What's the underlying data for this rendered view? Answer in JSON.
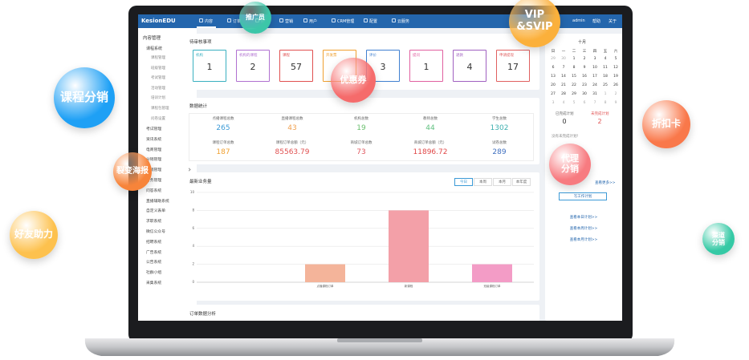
{
  "app": {
    "logo": "KesionEDU",
    "nav": [
      "内容",
      "订单",
      "财务",
      "营销",
      "用户",
      "CRM管理",
      "配置",
      "云服务"
    ],
    "user": [
      "admin",
      "帮助",
      "关于"
    ],
    "sidebar": {
      "title": "内容管理",
      "group": "课程系统",
      "sub": [
        "课程管理",
        "班级管理",
        "考试管理",
        "活动管理",
        "培训计划",
        "课程包管理",
        "问卷设置"
      ],
      "menu": [
        "考试管理",
        "资讯系统",
        "电商管理",
        "分销管理",
        "营销管理",
        "财务管理",
        "问答系统",
        "直播辅助系统",
        "自定义表单",
        "求职系统",
        "微信公众号",
        "招聘系统",
        "广告系统",
        "公告系统",
        "社群小组",
        "采集系统"
      ]
    },
    "pending": {
      "title": "待审核事项",
      "cards": [
        {
          "label": "机构",
          "value": 1,
          "color": "#3ab0c0"
        },
        {
          "label": "机构的课程",
          "value": 2,
          "color": "#b070d0"
        },
        {
          "label": "课程",
          "value": 57,
          "color": "#e05050"
        },
        {
          "label": "开发票",
          "color": "#f0a030"
        },
        {
          "label": "评价",
          "value": 3,
          "color": "#4080d0"
        },
        {
          "label": "提问",
          "value": 1,
          "color": "#e060a0"
        },
        {
          "label": "退款",
          "value": 4,
          "color": "#a060c0"
        },
        {
          "label": "申请提现",
          "value": 17,
          "color": "#e06060"
        }
      ]
    },
    "stats": {
      "title": "数据统计",
      "items": [
        {
          "label": "点播课程总数",
          "value": "265",
          "color": "#3c9ad6"
        },
        {
          "label": "直播课程总数",
          "value": "43",
          "color": "#f0a050"
        },
        {
          "label": "机构总数",
          "value": "19",
          "color": "#6cc070"
        },
        {
          "label": "教师总数",
          "value": "44",
          "color": "#60c080"
        },
        {
          "label": "学生总数",
          "value": "1302",
          "color": "#3fb0b0"
        },
        {
          "label": "课程订单总数",
          "value": "187",
          "color": "#f0a030"
        },
        {
          "label": "课程订单总额（元）",
          "value": "85563.79",
          "color": "#e05050"
        },
        {
          "label": "商城订单总数",
          "value": "73",
          "color": "#e05860"
        },
        {
          "label": "商城订单总额（元）",
          "value": "11896.72",
          "color": "#e04848"
        },
        {
          "label": "试卷总数",
          "value": "289",
          "color": "#4070c0"
        }
      ]
    },
    "chart_panel": {
      "title": "最新业务量",
      "tabs": [
        "今日",
        "本周",
        "本月",
        "本年度"
      ]
    },
    "orders": {
      "title": "订单数据分析"
    },
    "calendar": {
      "month": "十月",
      "weekdays": [
        "日",
        "一",
        "二",
        "三",
        "四",
        "五",
        "六"
      ],
      "days": [
        29,
        30,
        1,
        2,
        3,
        4,
        5,
        6,
        7,
        8,
        9,
        10,
        11,
        12,
        13,
        14,
        15,
        16,
        17,
        18,
        19,
        20,
        21,
        22,
        23,
        24,
        25,
        26,
        27,
        28,
        29,
        30,
        31,
        1,
        2,
        3,
        4,
        5,
        6,
        7,
        8,
        9
      ]
    },
    "plans": {
      "done_label": "已完成计划",
      "done": 0,
      "todo_label": "未完成计划",
      "todo": 2,
      "empty": "没有未完成计划！",
      "more": "查看更多>>",
      "write": "写工作计划",
      "links": [
        "查看本日计划>>",
        "查看本周计划>>",
        "查看本月计划>>"
      ]
    }
  },
  "chart_data": {
    "type": "bar",
    "categories": [
      "点播课程订单",
      "新课程",
      "班级课程订单"
    ],
    "values": [
      2,
      8,
      2
    ],
    "colors": [
      "#f4b49a",
      "#f3a0a8",
      "#f39cc6"
    ],
    "ylim": [
      0,
      10
    ],
    "yticks": [
      0,
      2,
      4,
      6,
      8,
      10
    ],
    "grid": true
  },
  "bubbles": [
    {
      "lines": [
        "推广员"
      ],
      "color": "#3cc6a8"
    },
    {
      "lines": [
        "VIP",
        "&SVIP"
      ],
      "color": "#fbb03b"
    },
    {
      "lines": [
        "优惠券"
      ],
      "color": "#f56b6b"
    },
    {
      "lines": [
        "课程分销"
      ],
      "color": "#1ea0f5"
    },
    {
      "lines": [
        "裂变海报"
      ],
      "color": "#f7843a"
    },
    {
      "lines": [
        "好友助力"
      ],
      "color": "#fdc14e"
    },
    {
      "lines": [
        "代理",
        "分销"
      ],
      "color": "#f77b80"
    },
    {
      "lines": [
        "折扣卡"
      ],
      "color": "#f9784a"
    },
    {
      "lines": [
        "渠道",
        "分销"
      ],
      "color": "#35c9a5"
    }
  ]
}
